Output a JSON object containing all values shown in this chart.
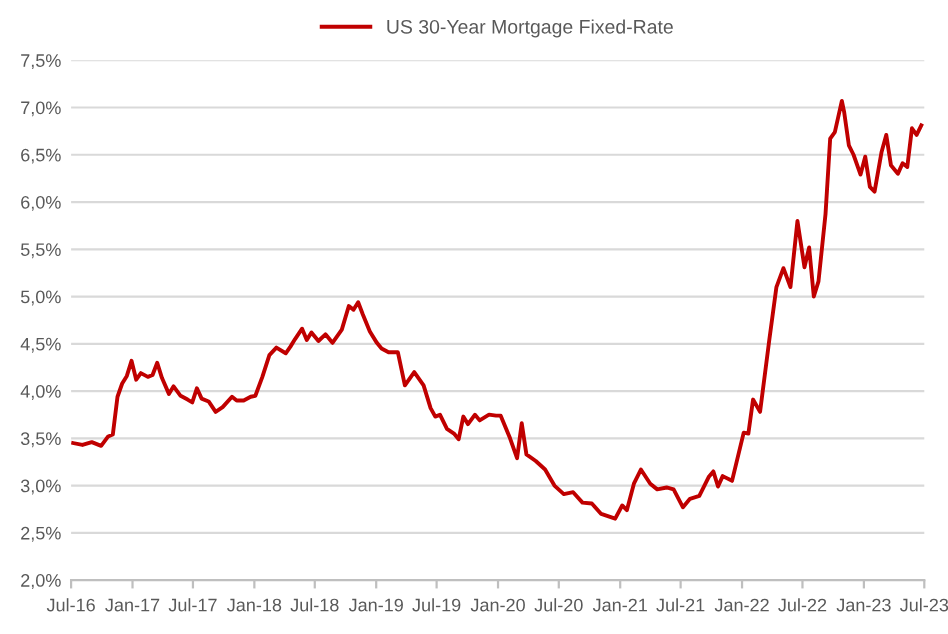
{
  "chart_data": {
    "type": "line",
    "x": [
      "2016-07-07",
      "2016-08-04",
      "2016-09-01",
      "2016-09-29",
      "2016-10-20",
      "2016-11-03",
      "2016-11-17",
      "2016-12-01",
      "2016-12-15",
      "2016-12-29",
      "2017-01-12",
      "2017-01-26",
      "2017-02-16",
      "2017-03-02",
      "2017-03-16",
      "2017-03-30",
      "2017-04-20",
      "2017-05-04",
      "2017-05-25",
      "2017-06-15",
      "2017-06-29",
      "2017-07-13",
      "2017-07-27",
      "2017-08-17",
      "2017-09-07",
      "2017-09-28",
      "2017-10-26",
      "2017-11-09",
      "2017-11-30",
      "2017-12-21",
      "2018-01-04",
      "2018-01-25",
      "2018-02-15",
      "2018-03-08",
      "2018-04-05",
      "2018-04-19",
      "2018-05-03",
      "2018-05-24",
      "2018-06-07",
      "2018-06-21",
      "2018-07-12",
      "2018-08-02",
      "2018-08-23",
      "2018-09-20",
      "2018-10-11",
      "2018-10-25",
      "2018-11-08",
      "2018-11-22",
      "2018-12-13",
      "2019-01-03",
      "2019-01-17",
      "2019-02-07",
      "2019-03-07",
      "2019-03-28",
      "2019-04-25",
      "2019-05-23",
      "2019-06-13",
      "2019-06-27",
      "2019-07-11",
      "2019-08-01",
      "2019-08-22",
      "2019-09-05",
      "2019-09-19",
      "2019-10-03",
      "2019-10-24",
      "2019-11-07",
      "2019-12-05",
      "2019-12-26",
      "2020-01-09",
      "2020-02-06",
      "2020-02-27",
      "2020-03-12",
      "2020-03-26",
      "2020-04-23",
      "2020-05-21",
      "2020-06-18",
      "2020-07-16",
      "2020-08-13",
      "2020-09-10",
      "2020-10-08",
      "2020-11-05",
      "2020-12-17",
      "2021-01-07",
      "2021-01-21",
      "2021-02-11",
      "2021-03-04",
      "2021-04-01",
      "2021-04-22",
      "2021-05-20",
      "2021-06-10",
      "2021-07-08",
      "2021-07-29",
      "2021-08-26",
      "2021-09-23",
      "2021-10-07",
      "2021-10-21",
      "2021-11-04",
      "2021-12-02",
      "2022-01-06",
      "2022-01-20",
      "2022-02-03",
      "2022-02-24",
      "2022-03-24",
      "2022-04-14",
      "2022-05-05",
      "2022-05-26",
      "2022-06-16",
      "2022-07-07",
      "2022-07-21",
      "2022-08-04",
      "2022-08-18",
      "2022-09-08",
      "2022-09-22",
      "2022-10-06",
      "2022-10-27",
      "2022-11-03",
      "2022-11-17",
      "2022-12-01",
      "2022-12-22",
      "2023-01-05",
      "2023-01-19",
      "2023-02-02",
      "2023-02-23",
      "2023-03-09",
      "2023-03-23",
      "2023-04-13",
      "2023-04-27",
      "2023-05-11",
      "2023-05-25",
      "2023-06-08",
      "2023-06-22"
    ],
    "series": [
      {
        "name": "US 30-Year Mortgage Fixed-Rate",
        "color": "#c00000",
        "values": [
          3.45,
          3.43,
          3.46,
          3.42,
          3.52,
          3.54,
          3.94,
          4.08,
          4.16,
          4.32,
          4.12,
          4.19,
          4.15,
          4.17,
          4.3,
          4.14,
          3.97,
          4.05,
          3.95,
          3.91,
          3.88,
          4.03,
          3.92,
          3.89,
          3.78,
          3.83,
          3.94,
          3.9,
          3.9,
          3.94,
          3.95,
          4.15,
          4.38,
          4.46,
          4.4,
          4.47,
          4.55,
          4.66,
          4.54,
          4.62,
          4.53,
          4.6,
          4.51,
          4.65,
          4.9,
          4.86,
          4.94,
          4.81,
          4.63,
          4.51,
          4.45,
          4.41,
          4.41,
          4.06,
          4.2,
          4.06,
          3.82,
          3.73,
          3.75,
          3.6,
          3.55,
          3.49,
          3.73,
          3.65,
          3.75,
          3.69,
          3.75,
          3.74,
          3.74,
          3.5,
          3.29,
          3.66,
          3.33,
          3.26,
          3.17,
          3.0,
          2.91,
          2.93,
          2.82,
          2.81,
          2.7,
          2.65,
          2.79,
          2.74,
          3.02,
          3.17,
          3.02,
          2.96,
          2.98,
          2.96,
          2.77,
          2.86,
          2.89,
          3.09,
          3.15,
          2.99,
          3.1,
          3.05,
          3.56,
          3.55,
          3.91,
          3.78,
          4.55,
          5.1,
          5.3,
          5.1,
          5.8,
          5.31,
          5.52,
          5.0,
          5.16,
          5.87,
          6.67,
          6.74,
          7.07,
          6.95,
          6.6,
          6.5,
          6.29,
          6.48,
          6.16,
          6.11,
          6.53,
          6.71,
          6.39,
          6.3,
          6.41,
          6.37,
          6.78,
          6.71,
          6.81
        ]
      }
    ],
    "xlim": [
      "2016-07-01",
      "2023-07-01"
    ],
    "xticks": [
      {
        "value": "2016-07-01",
        "label": "Jul-16"
      },
      {
        "value": "2017-01-01",
        "label": "Jan-17"
      },
      {
        "value": "2017-07-01",
        "label": "Jul-17"
      },
      {
        "value": "2018-01-01",
        "label": "Jan-18"
      },
      {
        "value": "2018-07-01",
        "label": "Jul-18"
      },
      {
        "value": "2019-01-01",
        "label": "Jan-19"
      },
      {
        "value": "2019-07-01",
        "label": "Jul-19"
      },
      {
        "value": "2020-01-01",
        "label": "Jan-20"
      },
      {
        "value": "2020-07-01",
        "label": "Jul-20"
      },
      {
        "value": "2021-01-01",
        "label": "Jan-21"
      },
      {
        "value": "2021-07-01",
        "label": "Jul-21"
      },
      {
        "value": "2022-01-01",
        "label": "Jan-22"
      },
      {
        "value": "2022-07-01",
        "label": "Jul-22"
      },
      {
        "value": "2023-01-01",
        "label": "Jan-23"
      },
      {
        "value": "2023-07-01",
        "label": "Jul-23"
      }
    ],
    "ylim": [
      2.0,
      7.5
    ],
    "yticks": [
      {
        "value": 2.0,
        "label": "2,0%"
      },
      {
        "value": 2.5,
        "label": "2,5%"
      },
      {
        "value": 3.0,
        "label": "3,0%"
      },
      {
        "value": 3.5,
        "label": "3,5%"
      },
      {
        "value": 4.0,
        "label": "4,0%"
      },
      {
        "value": 4.5,
        "label": "4,5%"
      },
      {
        "value": 5.0,
        "label": "5,0%"
      },
      {
        "value": 5.5,
        "label": "5,5%"
      },
      {
        "value": 6.0,
        "label": "6,0%"
      },
      {
        "value": 6.5,
        "label": "6,5%"
      },
      {
        "value": 7.0,
        "label": "7,0%"
      },
      {
        "value": 7.5,
        "label": "7,5%"
      }
    ],
    "grid": "y",
    "legend": "top",
    "marker": "none",
    "line_style": "solid"
  }
}
